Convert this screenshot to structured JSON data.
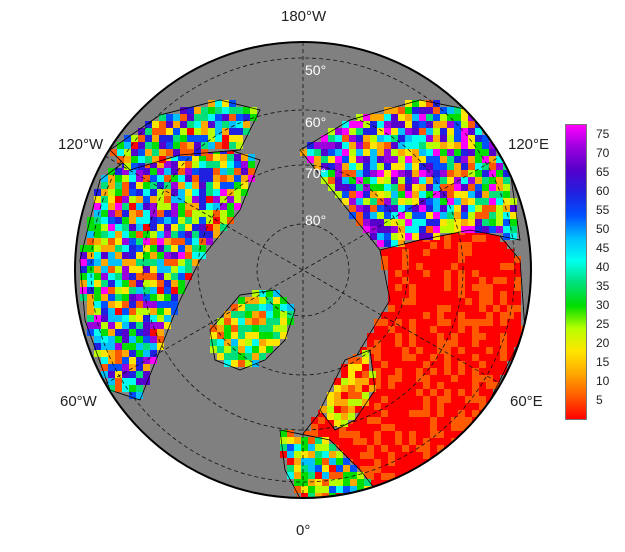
{
  "longitude_labels": {
    "top": "180°W",
    "bottom": "0°",
    "upper_left": "120°W",
    "upper_right": "120°E",
    "lower_left": "60°W",
    "lower_right": "60°E"
  },
  "latitude_labels": [
    "50°",
    "60°",
    "70°",
    "80°"
  ],
  "colorbar": {
    "ticks": [
      "75",
      "70",
      "65",
      "60",
      "55",
      "50",
      "45",
      "40",
      "35",
      "30",
      "25",
      "20",
      "15",
      "10",
      "5"
    ],
    "min": 0,
    "max": 78,
    "gradient_colors": [
      "#ff0000",
      "#ff5a00",
      "#ffa800",
      "#ffe600",
      "#b8ff00",
      "#00dd00",
      "#00e07a",
      "#00ffee",
      "#00c0ff",
      "#0050ff",
      "#2020e0",
      "#5500cc",
      "#9900dd",
      "#ff00ff"
    ]
  },
  "colors": {
    "ocean": "#808080",
    "border": "#000000"
  }
}
